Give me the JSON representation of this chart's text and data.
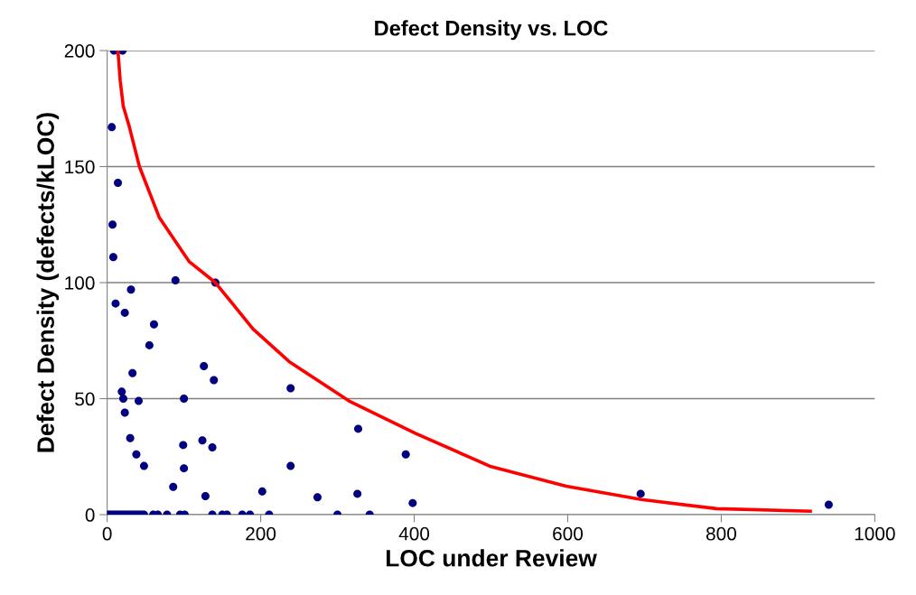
{
  "chart_data": {
    "type": "scatter",
    "title": "Defect Density vs. LOC",
    "xlabel": "LOC under Review",
    "ylabel": "Defect Density (defects/kLOC)",
    "xlim": [
      0,
      1000
    ],
    "xticks": [
      0,
      200,
      400,
      600,
      800,
      1000
    ],
    "ylim": [
      0,
      200
    ],
    "yticks": [
      0,
      50,
      100,
      150,
      200
    ],
    "grid": "y",
    "legend": false,
    "series": [
      {
        "color": "#000080",
        "marker": "circle",
        "x": [
          9,
          20,
          6,
          14,
          7,
          8,
          89,
          141,
          11,
          31,
          23,
          61,
          55,
          126,
          139,
          33,
          19,
          21,
          41,
          100,
          23,
          30,
          99,
          124,
          137,
          38,
          48,
          100,
          86,
          128,
          202,
          239,
          327,
          389,
          239,
          274,
          326,
          398,
          695,
          940,
          0,
          3,
          6,
          9,
          12,
          15,
          18,
          21,
          24,
          27,
          30,
          33,
          36,
          39,
          42,
          45,
          48,
          60,
          66,
          78,
          95,
          101,
          137,
          150,
          156,
          176,
          186,
          211,
          300,
          342
        ],
        "values": [
          200,
          200,
          167,
          143,
          125,
          111,
          101,
          100,
          91,
          97,
          87,
          82,
          73,
          64,
          58,
          61,
          53,
          50,
          49,
          50,
          44,
          33,
          30,
          32,
          29,
          26,
          21,
          20,
          12,
          8,
          10,
          54.5,
          37,
          26,
          21,
          7.5,
          9,
          5,
          9,
          4.3,
          0,
          0,
          0,
          0,
          0,
          0,
          0,
          0,
          0,
          0,
          0,
          0,
          0,
          0,
          0,
          0,
          0,
          0,
          0,
          0,
          0,
          0,
          0,
          0,
          0,
          0,
          0,
          0,
          0,
          0
        ]
      },
      {
        "type": "line",
        "color": "#ff0000",
        "marker": "none",
        "line_style": "solid",
        "x": [
          14,
          17,
          21,
          29,
          42,
          68,
          107,
          141,
          190,
          237,
          315,
          402,
          500,
          598,
          696,
          794,
          916
        ],
        "values": [
          200,
          187,
          176,
          167,
          150,
          128,
          109,
          100,
          80,
          66,
          49,
          35,
          20.7,
          12.3,
          6.5,
          2.6,
          1.5
        ]
      }
    ]
  }
}
